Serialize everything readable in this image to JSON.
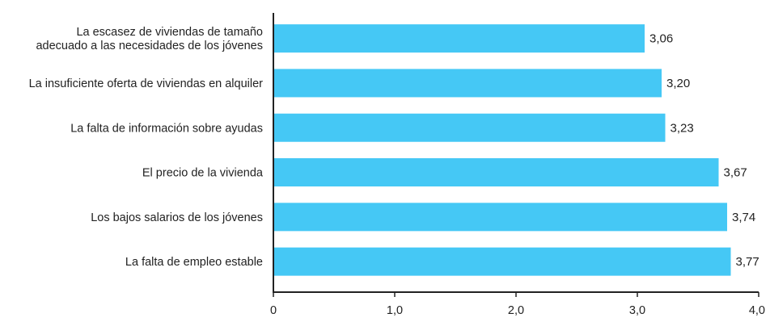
{
  "chart_data": {
    "type": "bar",
    "orientation": "horizontal",
    "categories": [
      [
        "La escasez de viviendas de tamaño",
        "adecuado a las necesidades de los jóvenes"
      ],
      [
        "La insuficiente oferta de viviendas en alquiler"
      ],
      [
        "La falta de información sobre ayudas"
      ],
      [
        "El precio de la vivienda"
      ],
      [
        "Los bajos salarios de los jóvenes"
      ],
      [
        "La falta de empleo estable"
      ]
    ],
    "values": [
      3.06,
      3.2,
      3.23,
      3.67,
      3.74,
      3.77
    ],
    "value_labels": [
      "3,06",
      "3,20",
      "3,23",
      "3,67",
      "3,74",
      "3,77"
    ],
    "xlim": [
      0,
      4
    ],
    "xticks": [
      0,
      1,
      2,
      3,
      4
    ],
    "xtick_labels": [
      "0",
      "1,0",
      "2,0",
      "3,0",
      "4,0"
    ],
    "title": "",
    "xlabel": "",
    "ylabel": "",
    "grid": false,
    "bar_color": "#45c8f5"
  }
}
